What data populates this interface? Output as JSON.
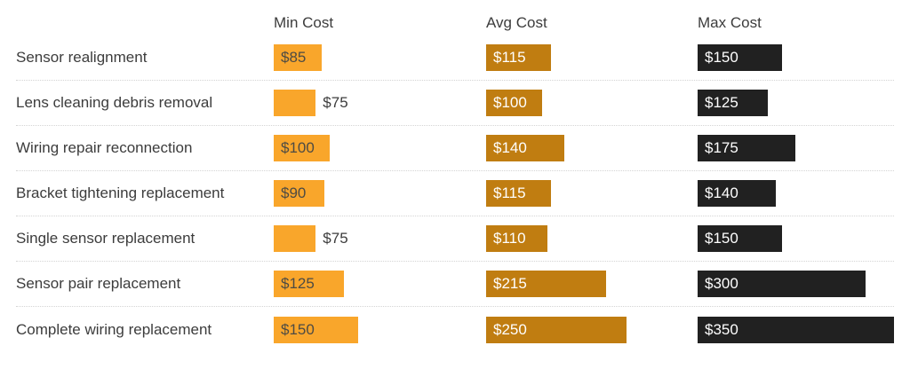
{
  "chart_data": {
    "type": "bar",
    "orientation": "horizontal",
    "title": "",
    "currency_prefix": "$",
    "columns": [
      "Min Cost",
      "Avg Cost",
      "Max Cost"
    ],
    "categories": [
      "Sensor realignment",
      "Lens cleaning debris removal",
      "Wiring repair reconnection",
      "Bracket tightening replacement",
      "Single sensor replacement",
      "Sensor pair replacement",
      "Complete wiring replacement"
    ],
    "series": [
      {
        "name": "Min Cost",
        "values": [
          85,
          75,
          100,
          90,
          75,
          125,
          150
        ],
        "bar_color": "#F9A62B",
        "value_text_color": "#4D4B44"
      },
      {
        "name": "Avg Cost",
        "values": [
          115,
          100,
          140,
          115,
          110,
          215,
          250
        ],
        "bar_color": "#C07D11",
        "value_text_color": "#FFFFFF"
      },
      {
        "name": "Max Cost",
        "values": [
          150,
          125,
          175,
          140,
          150,
          300,
          350
        ],
        "bar_color": "#212121",
        "value_text_color": "#FFFFFF"
      }
    ],
    "legend_position": "top-as-column-headers",
    "grid": "dotted-row-separators"
  },
  "colors": {
    "background": "#FFFFFF",
    "header_text": "#3C3C3C",
    "row_label_text": "#3C3C3C",
    "outside_value_text": "#3C3C3C",
    "separator": "#D4D4D4"
  }
}
